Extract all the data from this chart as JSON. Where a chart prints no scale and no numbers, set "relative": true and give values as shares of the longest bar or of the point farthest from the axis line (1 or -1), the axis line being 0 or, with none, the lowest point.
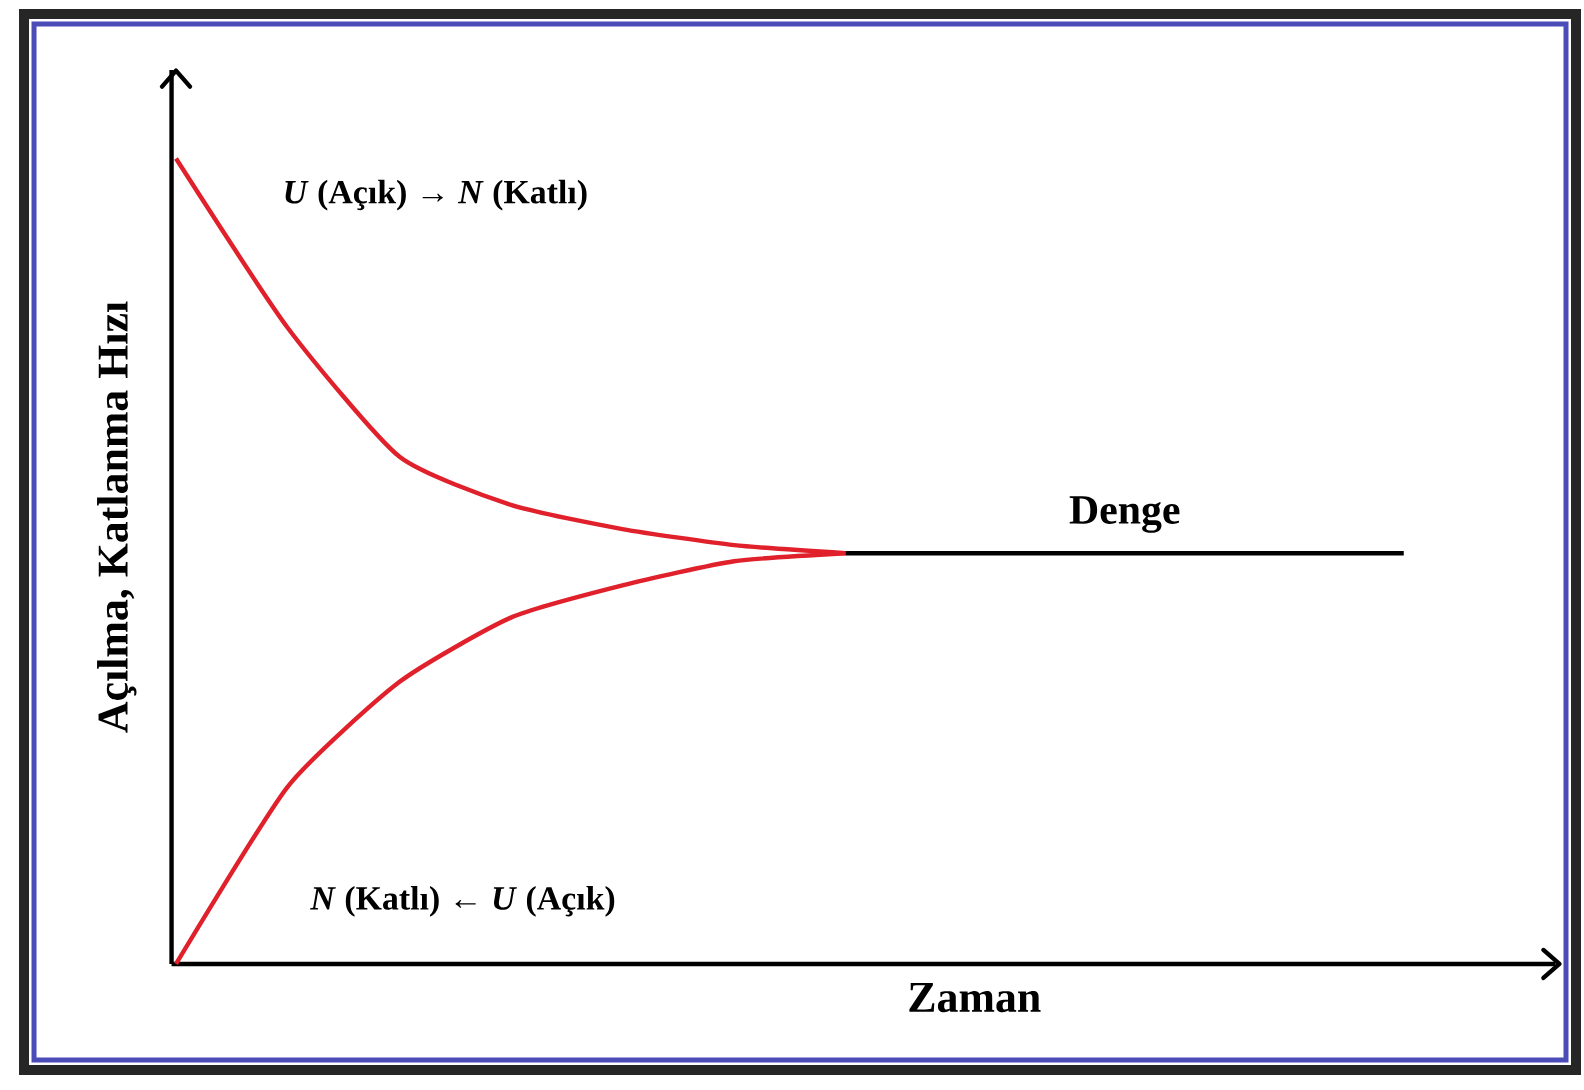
{
  "chart_data": {
    "type": "line",
    "relative": true,
    "xlabel": "Zaman",
    "ylabel": "Açılma, Katlanma Hızı",
    "categories": [
      null,
      null,
      null,
      null,
      null,
      null,
      null,
      null,
      null,
      null,
      null,
      null
    ],
    "series": [
      {
        "color": "#e0202a",
        "values": [
          1,
          0.79,
          0.63,
          0.57,
          0.54,
          0.52,
          0.51,
          null,
          null,
          null,
          null,
          null
        ]
      },
      {
        "color": "#e0202a",
        "values": [
          0,
          0.22,
          0.35,
          0.43,
          0.47,
          0.5,
          0.51,
          null,
          null,
          null,
          null,
          null
        ]
      },
      {
        "name": "Denge",
        "color": "#000000",
        "values": [
          null,
          null,
          null,
          null,
          null,
          null,
          0.51,
          0.51,
          0.51,
          0.51,
          0.51,
          0.51
        ]
      }
    ],
    "annotations": [
      "*U* (Açık) → *N* (Katlı)",
      "*N* (Katlı) ← *U* (Açık)"
    ]
  }
}
